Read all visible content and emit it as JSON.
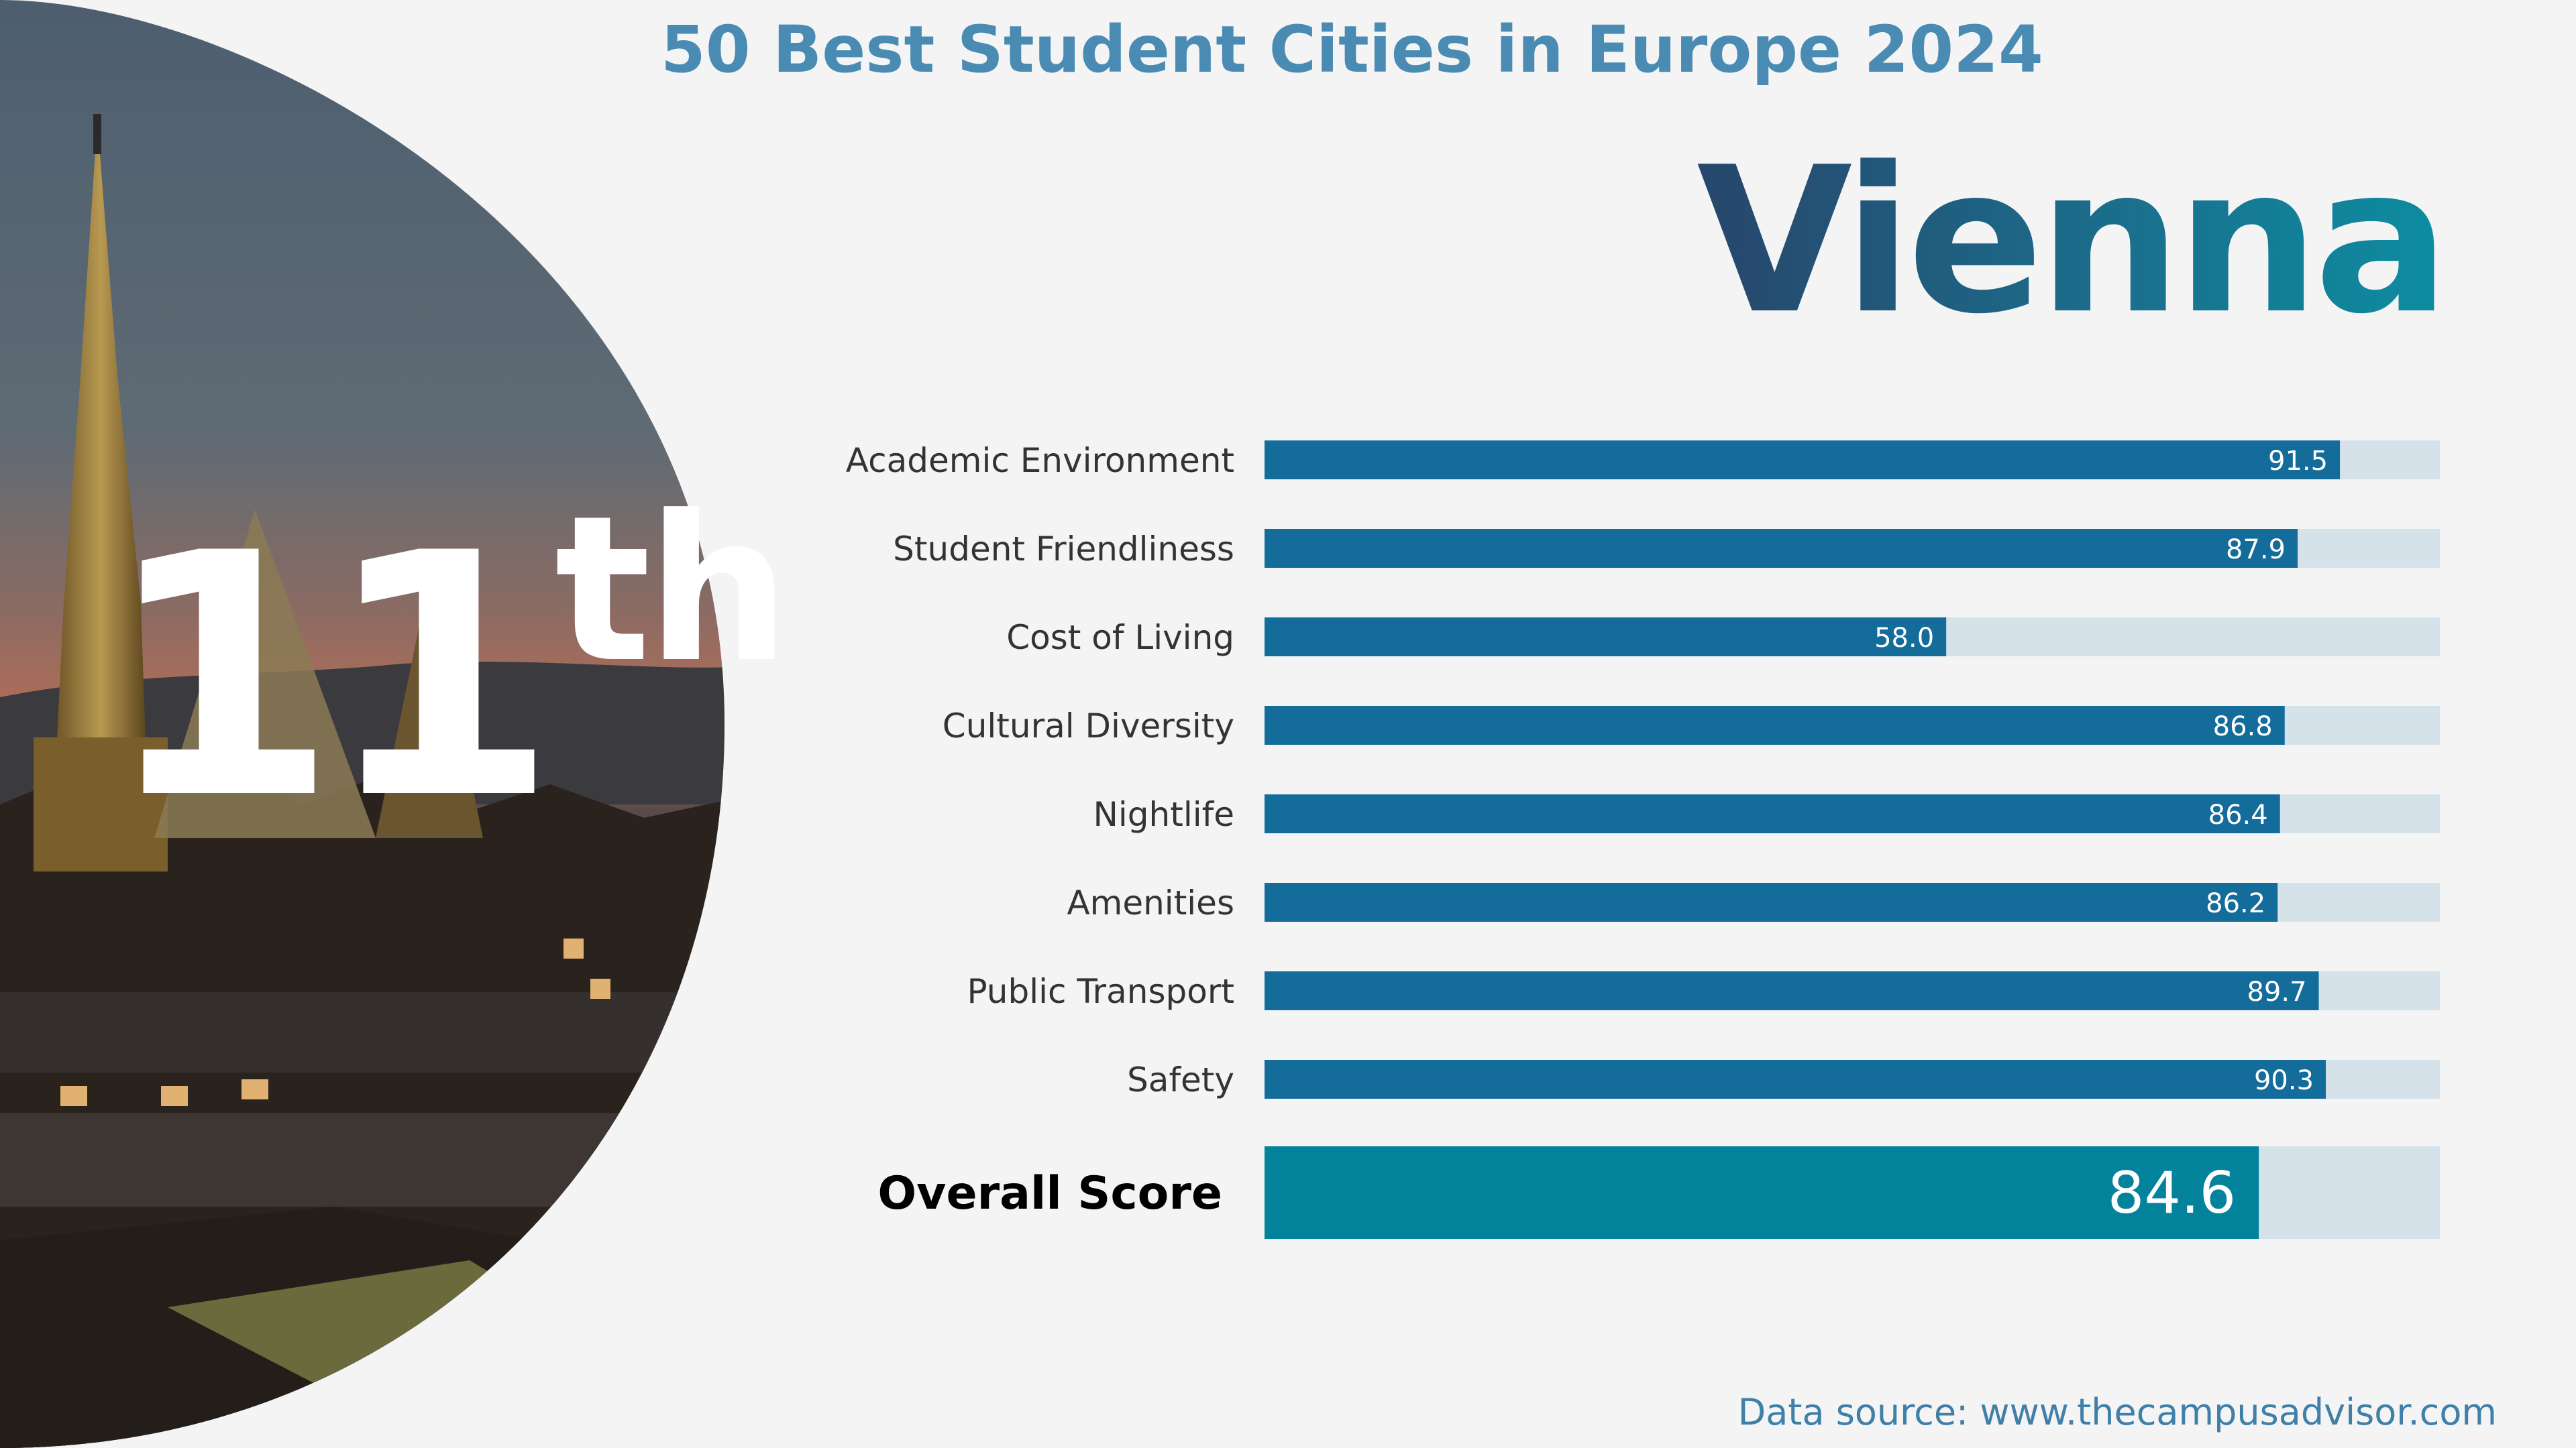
{
  "header": {
    "title": "50 Best Student Cities in Europe 2024",
    "city": "Vienna",
    "rank_number": "11",
    "rank_suffix": "th"
  },
  "footer": {
    "source": "Data source: www.thecampusadvisor.com"
  },
  "colors": {
    "bar_fill": "#136c9a",
    "bar_track": "#d5e2ea",
    "overall_fill": "#02839b",
    "label_text": "#333333"
  },
  "chart_data": {
    "type": "bar",
    "orientation": "horizontal",
    "categories": [
      "Academic Environment",
      "Student Friendliness",
      "Cost of Living",
      "Cultural Diversity",
      "Nightlife",
      "Amenities",
      "Public Transport",
      "Safety"
    ],
    "values": [
      91.5,
      87.9,
      58.0,
      86.8,
      86.4,
      86.2,
      89.7,
      90.3
    ],
    "value_labels": [
      "91.5",
      "87.9",
      "58.0",
      "86.8",
      "86.4",
      "86.2",
      "89.7",
      "90.3"
    ],
    "overall": {
      "label": "Overall Score",
      "value": 84.6,
      "value_label": "84.6"
    },
    "xlim": [
      0,
      100
    ],
    "grid": false,
    "title": "",
    "xlabel": "",
    "ylabel": ""
  }
}
